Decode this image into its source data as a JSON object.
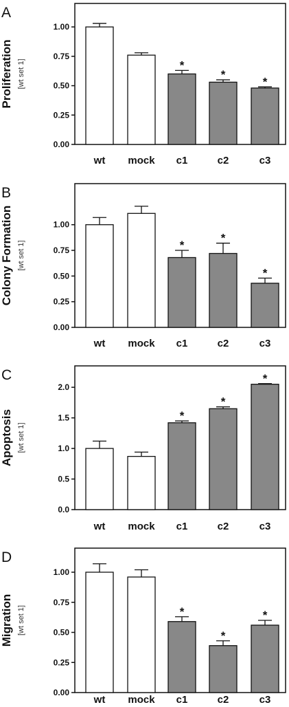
{
  "figure": {
    "bar_colors": {
      "control": "#ffffff",
      "knockdown": "#888888",
      "outline": "#111111"
    }
  },
  "chart_data": [
    {
      "type": "bar",
      "panel_letter": "A",
      "ylabel": "Proliferation",
      "ylabel_unit": "[wt set 1]",
      "categories": [
        "wt",
        "mock",
        "c1",
        "c2",
        "c3"
      ],
      "values": [
        1.0,
        0.76,
        0.6,
        0.53,
        0.48
      ],
      "errors": [
        0.03,
        0.02,
        0.03,
        0.02,
        0.01
      ],
      "significant": [
        false,
        false,
        true,
        true,
        true
      ],
      "significance_marker": "*",
      "fill_groups": [
        "control",
        "control",
        "knockdown",
        "knockdown",
        "knockdown"
      ],
      "ylim": [
        0,
        1.2
      ],
      "yticks": [
        0,
        0.25,
        0.5,
        0.75,
        1.0
      ],
      "ytick_labels": [
        "0.00",
        "0.25",
        "0.50",
        "0.75",
        "1.00"
      ]
    },
    {
      "type": "bar",
      "panel_letter": "B",
      "ylabel": "Colony Formation",
      "ylabel_unit": "[wt set 1]",
      "categories": [
        "wt",
        "mock",
        "c1",
        "c2",
        "c3"
      ],
      "values": [
        1.0,
        1.11,
        0.68,
        0.72,
        0.43
      ],
      "errors": [
        0.07,
        0.07,
        0.07,
        0.1,
        0.05
      ],
      "significant": [
        false,
        false,
        true,
        true,
        true
      ],
      "significance_marker": "*",
      "fill_groups": [
        "control",
        "control",
        "knockdown",
        "knockdown",
        "knockdown"
      ],
      "ylim": [
        0,
        1.4
      ],
      "yticks": [
        0,
        0.25,
        0.5,
        0.75,
        1.0
      ],
      "ytick_labels": [
        "0.00",
        "0.25",
        "0.50",
        "0.75",
        "1.00"
      ]
    },
    {
      "type": "bar",
      "panel_letter": "C",
      "ylabel": "Apoptosis",
      "ylabel_unit": "[wt set 1]",
      "categories": [
        "wt",
        "mock",
        "c1",
        "c2",
        "c3"
      ],
      "values": [
        1.0,
        0.87,
        1.42,
        1.65,
        2.05
      ],
      "errors": [
        0.12,
        0.07,
        0.03,
        0.03,
        0.01
      ],
      "significant": [
        false,
        false,
        true,
        true,
        true
      ],
      "significance_marker": "*",
      "fill_groups": [
        "control",
        "control",
        "knockdown",
        "knockdown",
        "knockdown"
      ],
      "ylim": [
        0,
        2.35
      ],
      "yticks": [
        0,
        0.5,
        1.0,
        1.5,
        2.0
      ],
      "ytick_labels": [
        "0.0",
        "0.5",
        "1.0",
        "1.5",
        "2.0"
      ]
    },
    {
      "type": "bar",
      "panel_letter": "D",
      "ylabel": "Migration",
      "ylabel_unit": "[wt set 1]",
      "categories": [
        "wt",
        "mock",
        "c1",
        "c2",
        "c3"
      ],
      "values": [
        1.0,
        0.96,
        0.59,
        0.39,
        0.56
      ],
      "errors": [
        0.07,
        0.06,
        0.04,
        0.04,
        0.04
      ],
      "significant": [
        false,
        false,
        true,
        true,
        true
      ],
      "significance_marker": "*",
      "fill_groups": [
        "control",
        "control",
        "knockdown",
        "knockdown",
        "knockdown"
      ],
      "ylim": [
        0,
        1.2
      ],
      "yticks": [
        0,
        0.25,
        0.5,
        0.75,
        1.0
      ],
      "ytick_labels": [
        "0.00",
        "0.25",
        "0.50",
        "0.75",
        "1.00"
      ]
    }
  ]
}
